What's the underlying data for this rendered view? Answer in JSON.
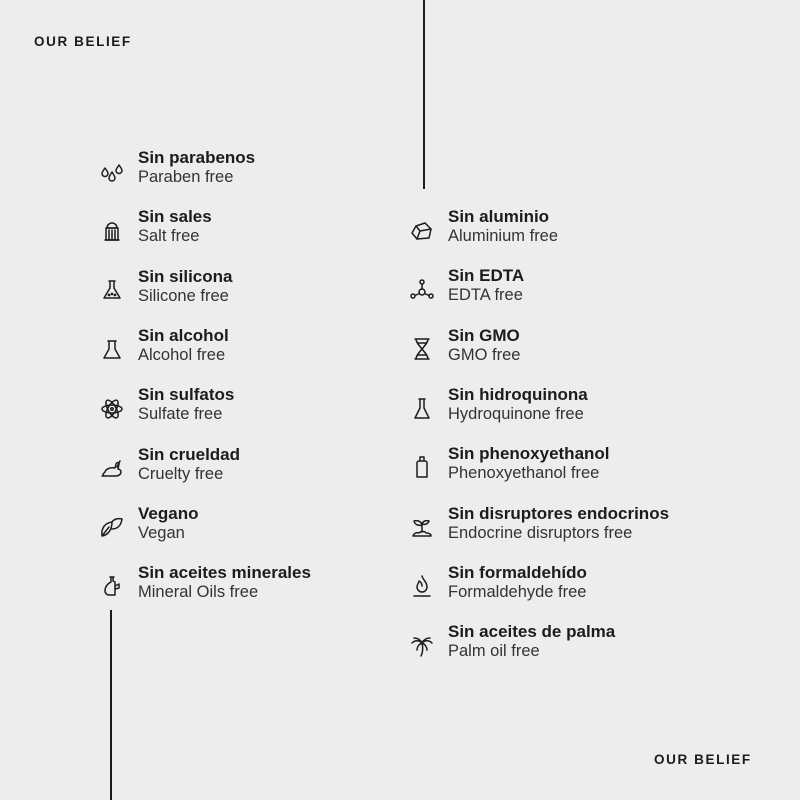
{
  "brand": "OUR BELIEF",
  "left_items": [
    {
      "title": "Sin parabenos",
      "subtitle": "Paraben free",
      "icon": "drops-icon"
    },
    {
      "title": "Sin sales",
      "subtitle": "Salt free",
      "icon": "salt-shaker-icon"
    },
    {
      "title": "Sin silicona",
      "subtitle": "Silicone free",
      "icon": "flask-dots-icon"
    },
    {
      "title": "Sin alcohol",
      "subtitle": "Alcohol free",
      "icon": "flask-icon"
    },
    {
      "title": "Sin sulfatos",
      "subtitle": "Sulfate free",
      "icon": "atom-icon"
    },
    {
      "title": "Sin crueldad",
      "subtitle": "Cruelty free",
      "icon": "rabbit-icon"
    },
    {
      "title": "Vegano",
      "subtitle": "Vegan",
      "icon": "leaves-icon"
    },
    {
      "title": "Sin aceites minerales",
      "subtitle": "Mineral Oils free",
      "icon": "oil-bottle-icon"
    }
  ],
  "right_items": [
    {
      "title": "Sin aluminio",
      "subtitle": "Aluminium free",
      "icon": "rock-icon"
    },
    {
      "title": "Sin EDTA",
      "subtitle": "EDTA free",
      "icon": "molecule-icon"
    },
    {
      "title": "Sin GMO",
      "subtitle": "GMO free",
      "icon": "dna-icon"
    },
    {
      "title": "Sin hidroquinona",
      "subtitle": "Hydroquinone free",
      "icon": "test-tube-flask-icon"
    },
    {
      "title": "Sin phenoxyethanol",
      "subtitle": "Phenoxyethanol free",
      "icon": "bottle-icon"
    },
    {
      "title": "Sin disruptores endocrinos",
      "subtitle": "Endocrine disruptors free",
      "icon": "sprout-icon"
    },
    {
      "title": "Sin formaldehído",
      "subtitle": "Formaldehyde free",
      "icon": "flame-icon"
    },
    {
      "title": "Sin aceites de palma",
      "subtitle": "Palm oil free",
      "icon": "palm-tree-icon"
    }
  ]
}
